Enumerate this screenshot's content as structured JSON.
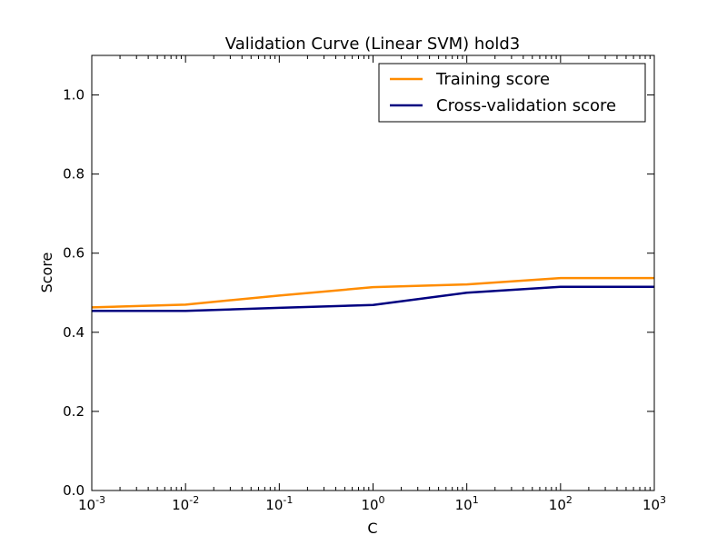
{
  "chart_data": {
    "type": "line",
    "title": "Validation Curve (Linear SVM) hold3",
    "xlabel": "C",
    "ylabel": "Score",
    "xscale": "log",
    "x": [
      0.001,
      0.01,
      0.1,
      1,
      10,
      100,
      1000
    ],
    "x_tick_labels": [
      {
        "base": "10",
        "exp": "-3"
      },
      {
        "base": "10",
        "exp": "-2"
      },
      {
        "base": "10",
        "exp": "-1"
      },
      {
        "base": "10",
        "exp": "0"
      },
      {
        "base": "10",
        "exp": "1"
      },
      {
        "base": "10",
        "exp": "2"
      },
      {
        "base": "10",
        "exp": "3"
      }
    ],
    "y_ticks": [
      0.0,
      0.2,
      0.4,
      0.6,
      0.8,
      1.0
    ],
    "y_tick_labels": [
      "0.0",
      "0.2",
      "0.4",
      "0.6",
      "0.8",
      "1.0"
    ],
    "xlim": [
      0.001,
      1000
    ],
    "ylim": [
      0.0,
      1.1
    ],
    "grid": false,
    "legend_position": "top-right",
    "series": [
      {
        "name": "Training score",
        "color": "#ff8c00",
        "values": [
          0.463,
          0.47,
          0.493,
          0.514,
          0.521,
          0.537,
          0.537
        ]
      },
      {
        "name": "Cross-validation score",
        "color": "#000080",
        "values": [
          0.454,
          0.454,
          0.462,
          0.469,
          0.5,
          0.515,
          0.515
        ]
      }
    ]
  }
}
